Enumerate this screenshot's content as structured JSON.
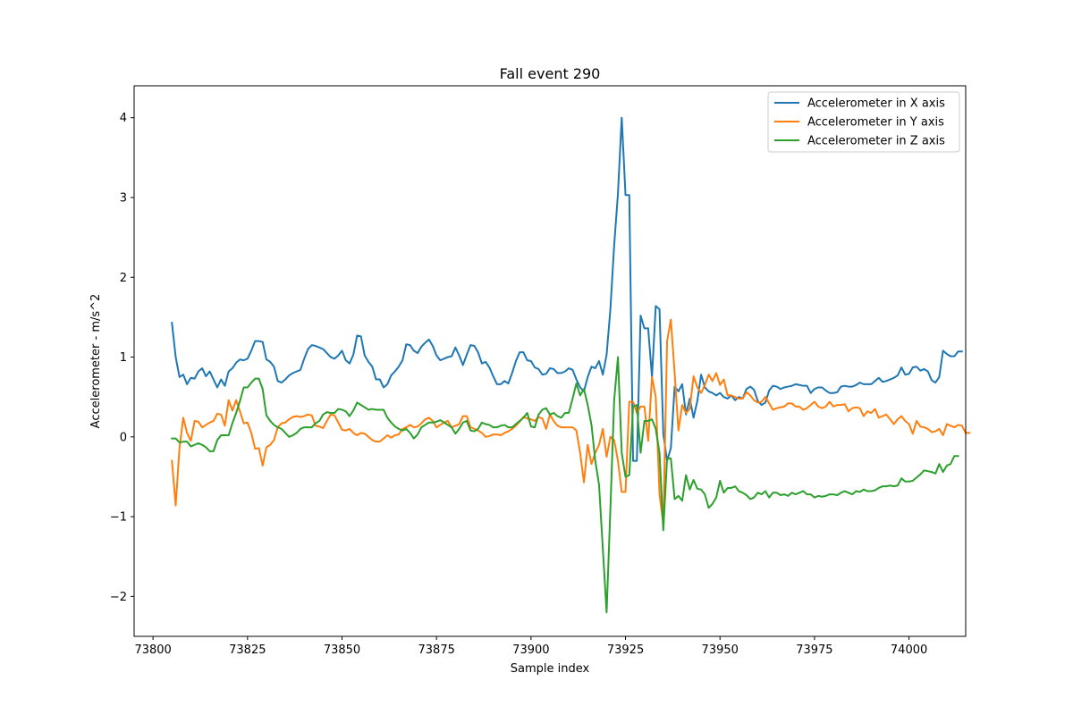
{
  "chart_data": {
    "type": "line",
    "title": "Fall event 290",
    "xlabel": "Sample index",
    "ylabel": "Accelerometer - m/s^2",
    "xlim": [
      73795,
      74015
    ],
    "ylim": [
      -2.5,
      4.4
    ],
    "xticks": [
      73800,
      73825,
      73850,
      73875,
      73900,
      73925,
      73950,
      73975,
      74000
    ],
    "xtick_labels": [
      "73800",
      "73825",
      "73850",
      "73875",
      "73900",
      "73925",
      "73950",
      "73975",
      "74000"
    ],
    "yticks": [
      -2,
      -1,
      0,
      1,
      2,
      3,
      4
    ],
    "ytick_labels": [
      "−2",
      "−1",
      "0",
      "1",
      "2",
      "3",
      "4"
    ],
    "grid": false,
    "legend_position": "top-right",
    "x_start": 73805,
    "series": [
      {
        "name": "Accelerometer in X axis",
        "color": "#1f77b4",
        "values": [
          1.43,
          1.0,
          0.75,
          0.78,
          0.66,
          0.74,
          0.73,
          0.82,
          0.86,
          0.76,
          0.82,
          0.72,
          0.62,
          0.72,
          0.64,
          0.82,
          0.86,
          0.93,
          0.97,
          0.96,
          0.98,
          1.08,
          1.2,
          1.2,
          1.19,
          0.97,
          0.94,
          0.88,
          0.7,
          0.68,
          0.72,
          0.77,
          0.8,
          0.82,
          0.84,
          0.98,
          1.1,
          1.15,
          1.14,
          1.12,
          1.1,
          1.05,
          1.0,
          0.98,
          1.02,
          1.08,
          0.96,
          0.92,
          1.03,
          1.27,
          1.26,
          1.02,
          0.94,
          0.88,
          0.72,
          0.72,
          0.62,
          0.66,
          0.77,
          0.82,
          0.88,
          0.96,
          1.16,
          1.15,
          1.08,
          1.05,
          1.13,
          1.18,
          1.22,
          1.14,
          1.02,
          0.96,
          0.98,
          1.0,
          1.01,
          1.12,
          1.02,
          0.9,
          1.03,
          1.15,
          1.14,
          1.06,
          0.92,
          0.94,
          0.87,
          0.76,
          0.66,
          0.66,
          0.7,
          0.67,
          0.8,
          0.95,
          1.06,
          1.06,
          0.96,
          0.95,
          0.87,
          0.85,
          0.78,
          0.79,
          0.86,
          0.85,
          0.8,
          0.8,
          0.82,
          0.86,
          0.84,
          0.72,
          0.62,
          0.57,
          0.75,
          0.88,
          0.86,
          0.95,
          0.78,
          1.03,
          1.6,
          2.4,
          3.05,
          4.0,
          3.03,
          3.03,
          -0.3,
          -0.3,
          1.52,
          1.36,
          1.36,
          0.75,
          1.64,
          1.6,
          0.04,
          -0.3,
          -0.14,
          0.63,
          0.57,
          0.66,
          0.28,
          0.48,
          0.24,
          0.45,
          0.78,
          0.62,
          0.57,
          0.55,
          0.52,
          0.55,
          0.5,
          0.48,
          0.52,
          0.46,
          0.5,
          0.48,
          0.6,
          0.63,
          0.59,
          0.45,
          0.4,
          0.43,
          0.58,
          0.64,
          0.63,
          0.6,
          0.62,
          0.63,
          0.64,
          0.66,
          0.65,
          0.64,
          0.64,
          0.55,
          0.6,
          0.62,
          0.62,
          0.58,
          0.55,
          0.55,
          0.56,
          0.63,
          0.64,
          0.63,
          0.63,
          0.65,
          0.68,
          0.66,
          0.66,
          0.66,
          0.7,
          0.74,
          0.69,
          0.7,
          0.72,
          0.74,
          0.77,
          0.87,
          0.78,
          0.79,
          0.87,
          0.88,
          0.83,
          0.85,
          0.82,
          0.71,
          0.68,
          0.75,
          1.08,
          1.04,
          1.01,
          1.01,
          1.07,
          1.07
        ]
      },
      {
        "name": "Accelerometer in Y axis",
        "color": "#ff7f0e",
        "values": [
          -0.3,
          -0.86,
          -0.14,
          0.24,
          0.05,
          -0.05,
          0.2,
          0.19,
          0.12,
          0.15,
          0.18,
          0.2,
          0.29,
          0.28,
          0.14,
          0.46,
          0.33,
          0.46,
          0.32,
          0.17,
          0.18,
          0.05,
          -0.15,
          -0.14,
          -0.36,
          -0.13,
          -0.1,
          -0.04,
          0.12,
          0.17,
          0.18,
          0.22,
          0.25,
          0.26,
          0.25,
          0.26,
          0.28,
          0.27,
          0.14,
          0.13,
          0.11,
          0.2,
          0.28,
          0.27,
          0.18,
          0.09,
          0.08,
          0.1,
          0.05,
          0.02,
          0.05,
          0.04,
          0.0,
          -0.04,
          -0.06,
          -0.06,
          -0.02,
          0.02,
          -0.01,
          0.02,
          0.03,
          0.1,
          0.12,
          0.15,
          0.12,
          0.13,
          0.17,
          0.22,
          0.24,
          0.2,
          0.12,
          0.15,
          0.18,
          0.2,
          0.12,
          0.14,
          0.16,
          0.26,
          0.26,
          0.12,
          0.1,
          0.08,
          0.05,
          0.0,
          0.01,
          0.03,
          0.03,
          0.02,
          0.05,
          0.07,
          0.1,
          0.14,
          0.19,
          0.25,
          0.23,
          0.22,
          0.2,
          0.25,
          0.23,
          0.1,
          0.28,
          0.2,
          0.14,
          0.12,
          0.12,
          0.12,
          0.12,
          0.08,
          -0.2,
          -0.57,
          -0.1,
          -0.34,
          -0.2,
          -0.1,
          0.1,
          -0.25,
          0.0,
          -0.04,
          -0.3,
          -0.69,
          -0.69,
          0.44,
          0.44,
          0.3,
          0.38,
          0.38,
          -0.05,
          0.75,
          0.5,
          -0.72,
          -1.1,
          1.2,
          1.47,
          0.8,
          0.08,
          0.4,
          0.3,
          0.35,
          0.76,
          0.62,
          0.55,
          0.65,
          0.78,
          0.7,
          0.8,
          0.65,
          0.72,
          0.52,
          0.52,
          0.5,
          0.48,
          0.48,
          0.56,
          0.52,
          0.46,
          0.43,
          0.44,
          0.5,
          0.42,
          0.34,
          0.36,
          0.37,
          0.38,
          0.42,
          0.42,
          0.38,
          0.38,
          0.34,
          0.36,
          0.4,
          0.44,
          0.38,
          0.36,
          0.38,
          0.44,
          0.38,
          0.4,
          0.4,
          0.41,
          0.32,
          0.36,
          0.37,
          0.36,
          0.26,
          0.32,
          0.3,
          0.35,
          0.24,
          0.26,
          0.28,
          0.22,
          0.16,
          0.22,
          0.26,
          0.2,
          0.16,
          0.04,
          0.2,
          0.13,
          0.12,
          0.1,
          0.06,
          0.07,
          0.1,
          0.02,
          0.16,
          0.14,
          0.12,
          0.15,
          0.14,
          0.05,
          0.05
        ]
      },
      {
        "name": "Accelerometer in Z axis",
        "color": "#2ca02c",
        "values": [
          -0.02,
          -0.02,
          -0.07,
          -0.06,
          -0.06,
          -0.12,
          -0.1,
          -0.08,
          -0.1,
          -0.13,
          -0.18,
          -0.18,
          -0.04,
          0.02,
          0.02,
          0.02,
          0.17,
          0.3,
          0.45,
          0.62,
          0.62,
          0.68,
          0.73,
          0.73,
          0.6,
          0.27,
          0.2,
          0.15,
          0.12,
          0.1,
          0.05,
          0.0,
          0.02,
          0.05,
          0.1,
          0.12,
          0.12,
          0.12,
          0.17,
          0.2,
          0.28,
          0.31,
          0.3,
          0.3,
          0.35,
          0.34,
          0.32,
          0.26,
          0.33,
          0.43,
          0.4,
          0.37,
          0.34,
          0.35,
          0.34,
          0.34,
          0.34,
          0.24,
          0.18,
          0.13,
          0.1,
          0.08,
          0.1,
          0.05,
          -0.02,
          0.03,
          0.12,
          0.15,
          0.18,
          0.18,
          0.19,
          0.21,
          0.18,
          0.15,
          0.12,
          0.04,
          0.1,
          0.18,
          0.2,
          0.08,
          0.07,
          0.1,
          0.18,
          0.16,
          0.15,
          0.12,
          0.12,
          0.14,
          0.15,
          0.12,
          0.12,
          0.16,
          0.2,
          0.24,
          0.3,
          0.13,
          0.12,
          0.28,
          0.34,
          0.36,
          0.28,
          0.3,
          0.26,
          0.24,
          0.3,
          0.3,
          0.48,
          0.67,
          0.52,
          0.6,
          0.4,
          0.15,
          -0.3,
          -0.6,
          -1.4,
          -2.2,
          -0.9,
          0.46,
          1.0,
          -0.2,
          -0.5,
          -0.48,
          0.38,
          0.4,
          -0.2,
          0.2,
          0.2,
          0.22,
          0.1,
          -0.2,
          -1.17,
          -0.27,
          -0.27,
          -0.78,
          -0.74,
          -0.8,
          -0.48,
          -0.66,
          -0.54,
          -0.65,
          -0.66,
          -0.72,
          -0.89,
          -0.84,
          -0.76,
          -0.55,
          -0.7,
          -0.64,
          -0.64,
          -0.62,
          -0.68,
          -0.7,
          -0.73,
          -0.78,
          -0.76,
          -0.7,
          -0.72,
          -0.68,
          -0.76,
          -0.7,
          -0.7,
          -0.73,
          -0.72,
          -0.74,
          -0.7,
          -0.72,
          -0.7,
          -0.68,
          -0.72,
          -0.72,
          -0.76,
          -0.74,
          -0.75,
          -0.74,
          -0.72,
          -0.72,
          -0.73,
          -0.7,
          -0.68,
          -0.7,
          -0.72,
          -0.68,
          -0.69,
          -0.66,
          -0.68,
          -0.68,
          -0.67,
          -0.64,
          -0.62,
          -0.62,
          -0.61,
          -0.62,
          -0.61,
          -0.52,
          -0.56,
          -0.56,
          -0.55,
          -0.51,
          -0.47,
          -0.42,
          -0.43,
          -0.44,
          -0.46,
          -0.34,
          -0.44,
          -0.36,
          -0.34,
          -0.24,
          -0.24
        ]
      }
    ]
  }
}
